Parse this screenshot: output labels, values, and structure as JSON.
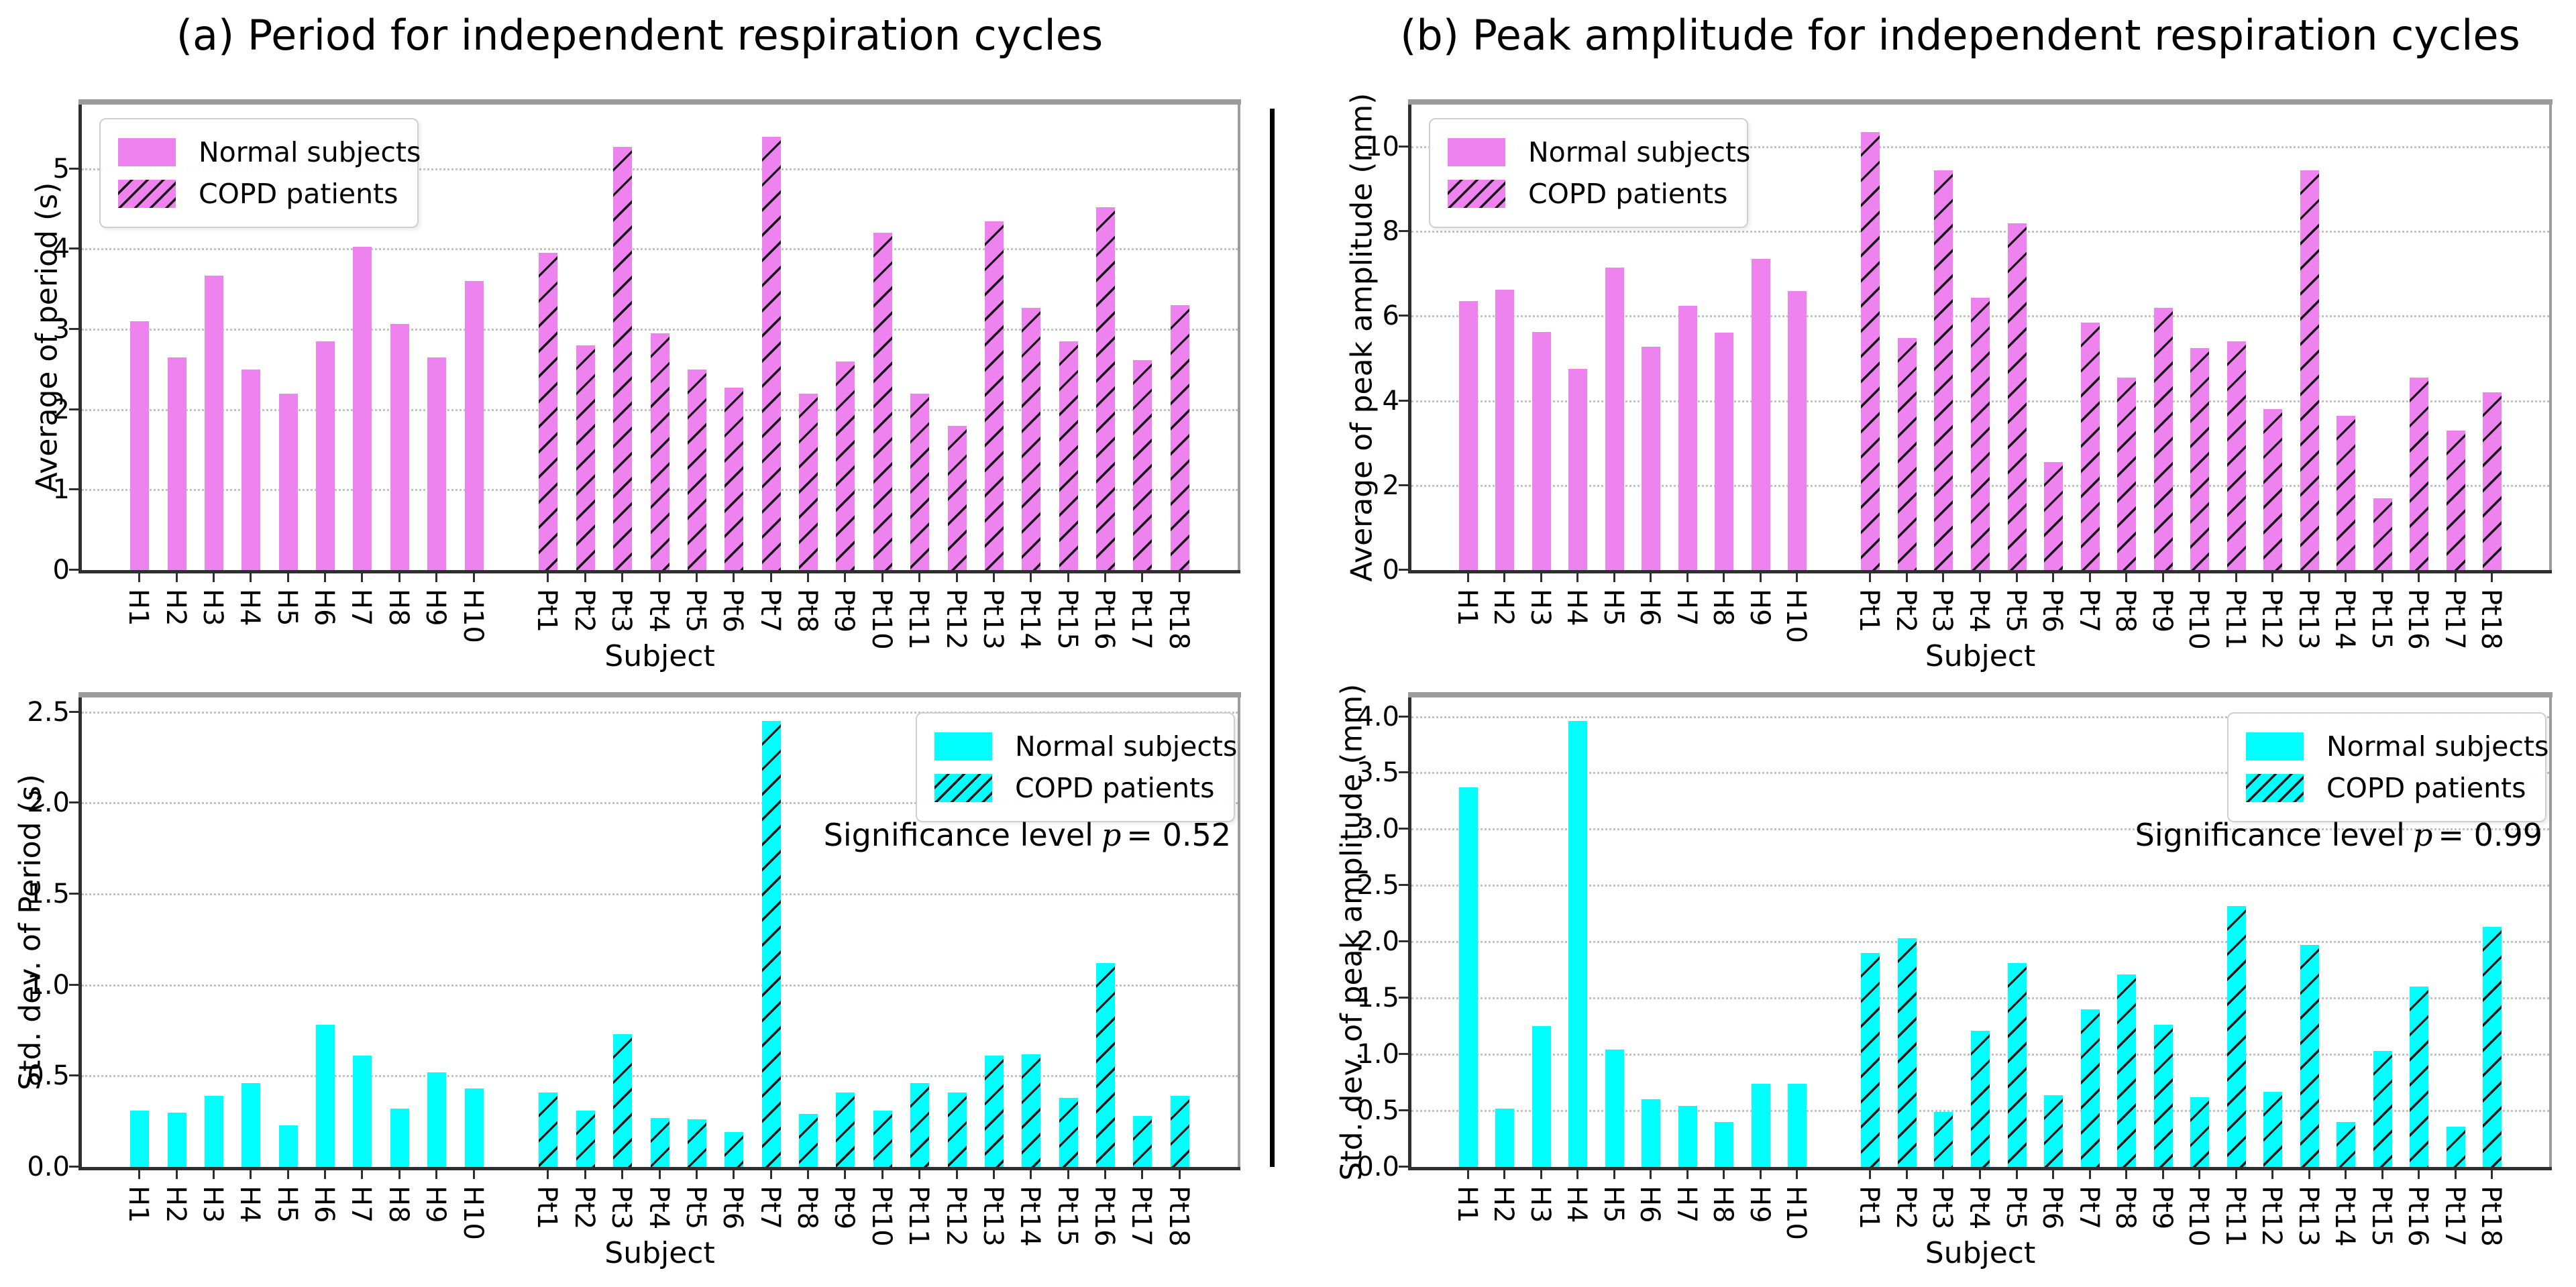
{
  "figure": {
    "panel_a_title": "(a) Period for independent respiration cycles",
    "panel_b_title": "(b) Peak amplitude for independent respiration cycles"
  },
  "legend": {
    "normal_label": "Normal subjects",
    "copd_label": "COPD patients"
  },
  "colors": {
    "top_bars": "#ee82ee",
    "bottom_bars": "#00ffff",
    "hatch": "#151515"
  },
  "categories": [
    "H1",
    "H2",
    "H3",
    "H4",
    "H5",
    "H6",
    "H7",
    "H8",
    "H9",
    "H10",
    "Pt1",
    "Pt2",
    "Pt3",
    "Pt4",
    "Pt5",
    "Pt6",
    "Pt7",
    "Pt8",
    "Pt9",
    "Pt10",
    "Pt11",
    "Pt12",
    "Pt13",
    "Pt14",
    "Pt15",
    "Pt16",
    "Pt17",
    "Pt18"
  ],
  "chart_data": [
    {
      "type": "bar",
      "slot": "tl",
      "title": "(a) Period for independent respiration cycles",
      "ylabel": "Average of period (s)",
      "xlabel": "Subject",
      "ylim": [
        0,
        5.8
      ],
      "ytick_values": [
        0,
        1,
        2,
        3,
        4,
        5
      ],
      "ytick_labels": [
        "0",
        "1",
        "2",
        "3",
        "4",
        "5"
      ],
      "grid": true,
      "bar_color": "#ee82ee",
      "legend_position": "upper-left",
      "significance": null,
      "series": [
        {
          "name": "Normal subjects",
          "hatch": false,
          "values": [
            3.1,
            2.65,
            3.67,
            2.5,
            2.2,
            2.85,
            4.03,
            3.07,
            2.65,
            3.6
          ]
        },
        {
          "name": "COPD patients",
          "hatch": true,
          "values": [
            3.95,
            2.8,
            5.27,
            2.95,
            2.5,
            2.27,
            5.4,
            2.2,
            2.6,
            4.2,
            2.2,
            1.8,
            4.35,
            3.27,
            2.85,
            4.52,
            2.62,
            3.3
          ]
        }
      ]
    },
    {
      "type": "bar",
      "slot": "tr",
      "title": "(b) Peak amplitude for independent respiration cycles",
      "ylabel": "Average of peak amplitude (mm)",
      "xlabel": "Subject",
      "ylim": [
        0,
        11.0
      ],
      "ytick_values": [
        0,
        2,
        4,
        6,
        8,
        10
      ],
      "ytick_labels": [
        "0",
        "2",
        "4",
        "6",
        "8",
        "10"
      ],
      "grid": true,
      "bar_color": "#ee82ee",
      "legend_position": "upper-left",
      "significance": null,
      "series": [
        {
          "name": "Normal subjects",
          "hatch": false,
          "values": [
            6.36,
            6.62,
            5.63,
            4.76,
            7.15,
            5.28,
            6.25,
            5.61,
            7.35,
            6.59
          ]
        },
        {
          "name": "COPD patients",
          "hatch": true,
          "values": [
            10.35,
            5.49,
            9.45,
            6.44,
            8.2,
            2.55,
            5.85,
            4.55,
            6.2,
            5.25,
            5.4,
            3.8,
            9.45,
            3.65,
            1.7,
            4.55,
            3.3,
            4.2
          ]
        }
      ]
    },
    {
      "type": "bar",
      "slot": "bl",
      "title": "(a) Period for independent respiration cycles",
      "ylabel": "Std. dev. of Period (s)",
      "xlabel": "Subject",
      "ylim": [
        0,
        2.58
      ],
      "ytick_values": [
        0,
        0.5,
        1.0,
        1.5,
        2.0,
        2.5
      ],
      "ytick_labels": [
        "0.0",
        "0.5",
        "1.0",
        "1.5",
        "2.0",
        "2.5"
      ],
      "grid": true,
      "bar_color": "#00ffff",
      "legend_position": "upper-right",
      "significance": {
        "label": "Significance level",
        "symbol": "p",
        "value": "= 0.52"
      },
      "series": [
        {
          "name": "Normal subjects",
          "hatch": false,
          "values": [
            0.31,
            0.3,
            0.39,
            0.46,
            0.23,
            0.78,
            0.61,
            0.32,
            0.52,
            0.43
          ]
        },
        {
          "name": "COPD patients",
          "hatch": true,
          "values": [
            0.41,
            0.31,
            0.73,
            0.27,
            0.26,
            0.19,
            2.45,
            0.29,
            0.41,
            0.31,
            0.46,
            0.41,
            0.61,
            0.62,
            0.38,
            1.12,
            0.28,
            0.39
          ]
        }
      ]
    },
    {
      "type": "bar",
      "slot": "br",
      "title": "(b) Peak amplitude for independent respiration cycles",
      "ylabel": "Std. dev. of peak amplitude (mm)",
      "xlabel": "Subject",
      "ylim": [
        0,
        4.17
      ],
      "ytick_values": [
        0,
        0.5,
        1.0,
        1.5,
        2.0,
        2.5,
        3.0,
        3.5,
        4.0
      ],
      "ytick_labels": [
        "0.0",
        "0.5",
        "1.0",
        "1.5",
        "2.0",
        "2.5",
        "3.0",
        "3.5",
        "4.0"
      ],
      "grid": true,
      "bar_color": "#00ffff",
      "legend_position": "upper-right",
      "significance": {
        "label": "Significance level",
        "symbol": "p",
        "value": "= 0.99"
      },
      "series": [
        {
          "name": "Normal subjects",
          "hatch": false,
          "values": [
            3.37,
            0.52,
            1.25,
            3.96,
            1.04,
            0.6,
            0.54,
            0.4,
            0.74,
            0.74
          ]
        },
        {
          "name": "COPD patients",
          "hatch": true,
          "values": [
            1.9,
            2.03,
            0.49,
            1.21,
            1.81,
            0.64,
            1.4,
            1.71,
            1.26,
            0.62,
            2.32,
            0.67,
            1.97,
            0.4,
            1.03,
            1.6,
            0.36,
            2.13
          ]
        }
      ]
    }
  ]
}
